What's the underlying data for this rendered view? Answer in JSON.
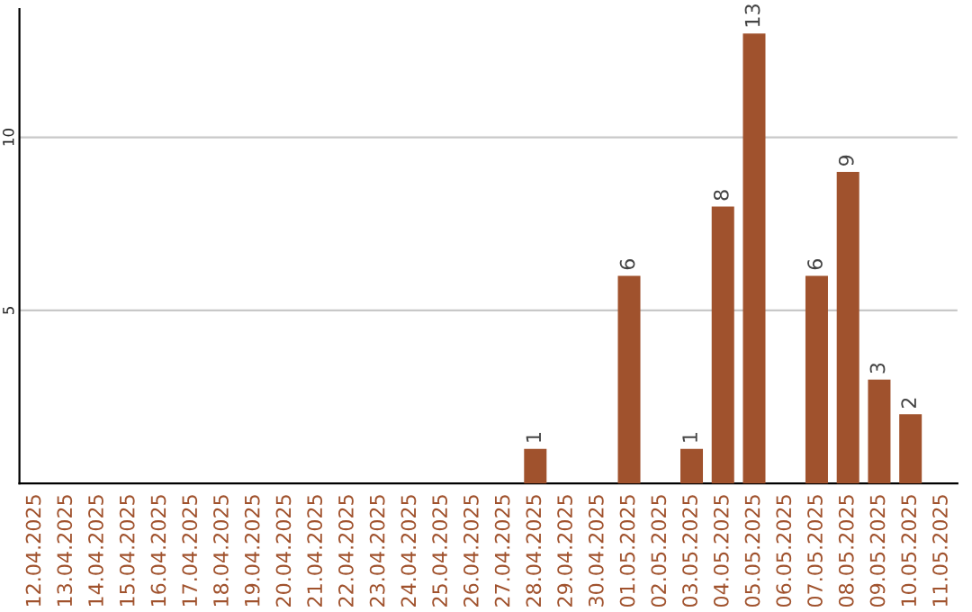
{
  "chart_data": {
    "type": "bar",
    "categories": [
      "12.04.2025",
      "13.04.2025",
      "14.04.2025",
      "15.04.2025",
      "16.04.2025",
      "17.04.2025",
      "18.04.2025",
      "19.04.2025",
      "20.04.2025",
      "21.04.2025",
      "22.04.2025",
      "23.04.2025",
      "24.04.2025",
      "25.04.2025",
      "26.04.2025",
      "27.04.2025",
      "28.04.2025",
      "29.04.2025",
      "30.04.2025",
      "01.05.2025",
      "02.05.2025",
      "03.05.2025",
      "04.05.2025",
      "05.05.2025",
      "06.05.2025",
      "07.05.2025",
      "08.05.2025",
      "09.05.2025",
      "10.05.2025",
      "11.05.2025"
    ],
    "values": [
      0,
      0,
      0,
      0,
      0,
      0,
      0,
      0,
      0,
      0,
      0,
      0,
      0,
      0,
      0,
      0,
      1,
      0,
      0,
      6,
      0,
      1,
      8,
      13,
      0,
      6,
      9,
      3,
      2,
      0
    ],
    "value_labels": [
      null,
      null,
      null,
      null,
      null,
      null,
      null,
      null,
      null,
      null,
      null,
      null,
      null,
      null,
      null,
      null,
      "1",
      null,
      null,
      "6",
      null,
      "1",
      "8",
      "13",
      null,
      "6",
      "9",
      "3",
      "2",
      null
    ],
    "color": "#a0522d",
    "ylim": [
      0,
      13.7
    ],
    "yticks": [
      5,
      10
    ],
    "grid": "y"
  }
}
